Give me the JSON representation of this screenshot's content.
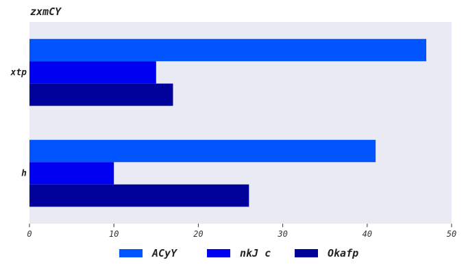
{
  "chart_data": {
    "type": "bar",
    "orientation": "horizontal",
    "title": "zxmCY",
    "categories": [
      "xtp",
      "h"
    ],
    "series": [
      {
        "name": "ACyY",
        "color": "#0055FF",
        "values": [
          47,
          41
        ]
      },
      {
        "name": "nkJ c",
        "color": "#0000F0",
        "values": [
          15,
          10
        ]
      },
      {
        "name": "Okafp",
        "color": "#00009A",
        "values": [
          17,
          26
        ]
      }
    ],
    "xlim": [
      0,
      50
    ],
    "xticks": [
      0,
      10,
      20,
      30,
      40,
      50
    ],
    "grid": false,
    "legend_position": "bottom",
    "background": "#E9EAF3"
  }
}
